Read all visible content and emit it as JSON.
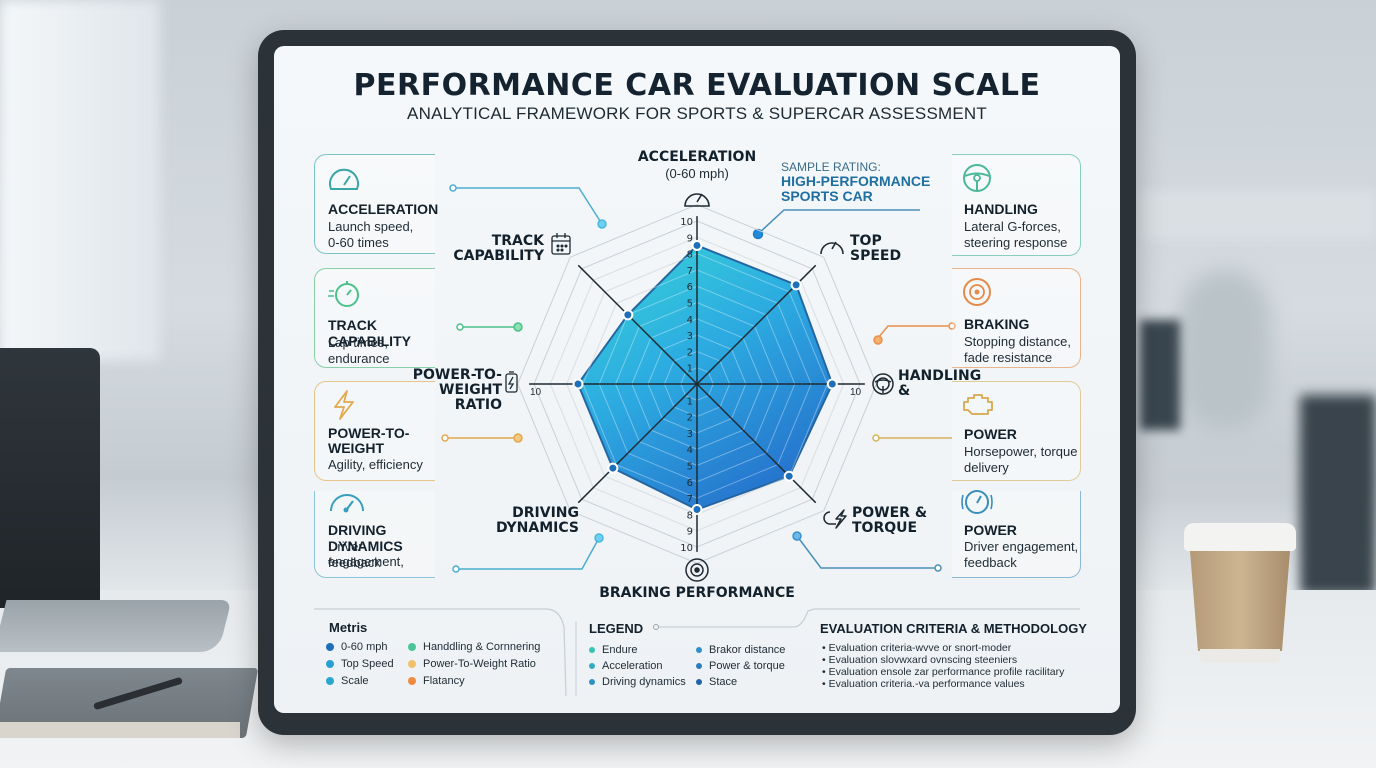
{
  "header": {
    "title": "PERFORMANCE CAR EVALUATION SCALE",
    "subtitle": "ANALYTICAL FRAMEWORK FOR SPORTS & SUPERCAR ASSESSMENT"
  },
  "sample_rating": {
    "label": "SAMPLE RATING:",
    "line1": "HIGH-PERFORMANCE",
    "line2": "SPORTS CAR"
  },
  "left_cards": [
    {
      "icon": "speedometer-icon",
      "title": "ACCELERATION",
      "desc1": "Launch speed,",
      "desc2": "0-60 times",
      "color": "#3aa6a6"
    },
    {
      "icon": "stopwatch-icon",
      "title": "TRACK CAPABILITY",
      "desc1": "Lap times,",
      "desc2": "endurance",
      "color": "#4cc08a"
    },
    {
      "icon": "lightning-icon",
      "title": "POWER-TO-",
      "title2": "WEIGHT",
      "desc1": "Agility, efficiency",
      "desc2": "",
      "color": "#e3a74e"
    },
    {
      "icon": "gauge-icon",
      "title": "DRIVING DYNAMICS",
      "desc1": "Driver engagement,",
      "desc2": "feedback",
      "color": "#3a9ec0"
    }
  ],
  "right_cards": [
    {
      "icon": "steering-wheel-icon",
      "title": "HANDLING",
      "desc1": "Lateral G-forces,",
      "desc2": "steering response",
      "color": "#4cb89a"
    },
    {
      "icon": "brake-disc-icon",
      "title": "BRAKING",
      "desc1": "Stopping distance,",
      "desc2": "fade resistance",
      "color": "#e48a4a"
    },
    {
      "icon": "engine-icon",
      "title": "POWER",
      "desc1": "Horsepower, torque",
      "desc2": "delivery",
      "color": "#d9b25a"
    },
    {
      "icon": "speed-gauge-icon",
      "title": "POWER",
      "desc1": "Driver engagement,",
      "desc2": "feedback",
      "color": "#3a8fba"
    }
  ],
  "axis_labels": {
    "acceleration": "ACCELERATION",
    "acceleration_sub": "(0-60 mph)",
    "top_speed_1": "TOP",
    "top_speed_2": "SPEED",
    "handling_1": "HANDLING",
    "handling_2": "&",
    "power_torque_1": "POWER &",
    "power_torque_2": "TORQUE",
    "braking": "BRAKING PERFORMANCE",
    "driving_1": "DRIVING",
    "driving_2": "DYNAMICS",
    "ptw_1": "POWER-TO-",
    "ptw_2": "WEIGHT",
    "ptw_3": "RATIO",
    "track_1": "TRACK",
    "track_2": "CAPABILITY",
    "left_tick": "10",
    "right_tick": "10"
  },
  "metrics_legend": {
    "title": "Metris",
    "items": [
      {
        "label": "0-60 mph",
        "color": "#1f6fb8"
      },
      {
        "label": "Top Speed",
        "color": "#2a9fd6"
      },
      {
        "label": "Scale",
        "color": "#2aa6cf"
      },
      {
        "label": "Handdling & Cornnering",
        "color": "#4cc49a"
      },
      {
        "label": "Power-To-Weight Ratio",
        "color": "#f0c06a"
      },
      {
        "label": "Flatancy",
        "color": "#ef8a3e"
      }
    ]
  },
  "legend": {
    "title": "LEGEND",
    "items": [
      {
        "label": "Endure",
        "color": "#36c4b4"
      },
      {
        "label": "Acceleration",
        "color": "#34aac4"
      },
      {
        "label": "Driving dynamics",
        "color": "#2f90c4"
      },
      {
        "label": "Brakor distance",
        "color": "#2f8fc8"
      },
      {
        "label": "Power & torque",
        "color": "#2a7ec0"
      },
      {
        "label": "Stace",
        "color": "#1f64a8"
      }
    ]
  },
  "evaluation": {
    "title": "EVALUATION CRITERIA & METHODOLOGY",
    "items": [
      "Evaluation criteria-wvve or snort-moder",
      "Evaluation slovwxard ovnscing steeniers",
      "Evaluation ensole zar performance profile racilitary",
      "Evaluation criteria.-va performance values"
    ]
  },
  "chart_data": {
    "type": "radar",
    "title": "PERFORMANCE CAR EVALUATION SCALE",
    "series": [
      {
        "name": "High-Performance Sports Car",
        "values": [
          8.5,
          8.6,
          8.3,
          8.0,
          7.7,
          7.3,
          7.3,
          6.0
        ]
      }
    ],
    "categories": [
      "Acceleration (0-60 mph)",
      "Top Speed",
      "Handling &",
      "Power & Torque",
      "Braking Performance",
      "Driving Dynamics",
      "Power-to-Weight Ratio",
      "Track Capability"
    ],
    "scale": [
      0,
      10
    ],
    "ticks": [
      1,
      2,
      3,
      4,
      5,
      6,
      7,
      8,
      9,
      10
    ],
    "grid": true,
    "colors": {
      "fill_top": "#2fd0d8",
      "fill_bottom": "#1e78d0",
      "stroke": "#1a5f9e"
    }
  }
}
